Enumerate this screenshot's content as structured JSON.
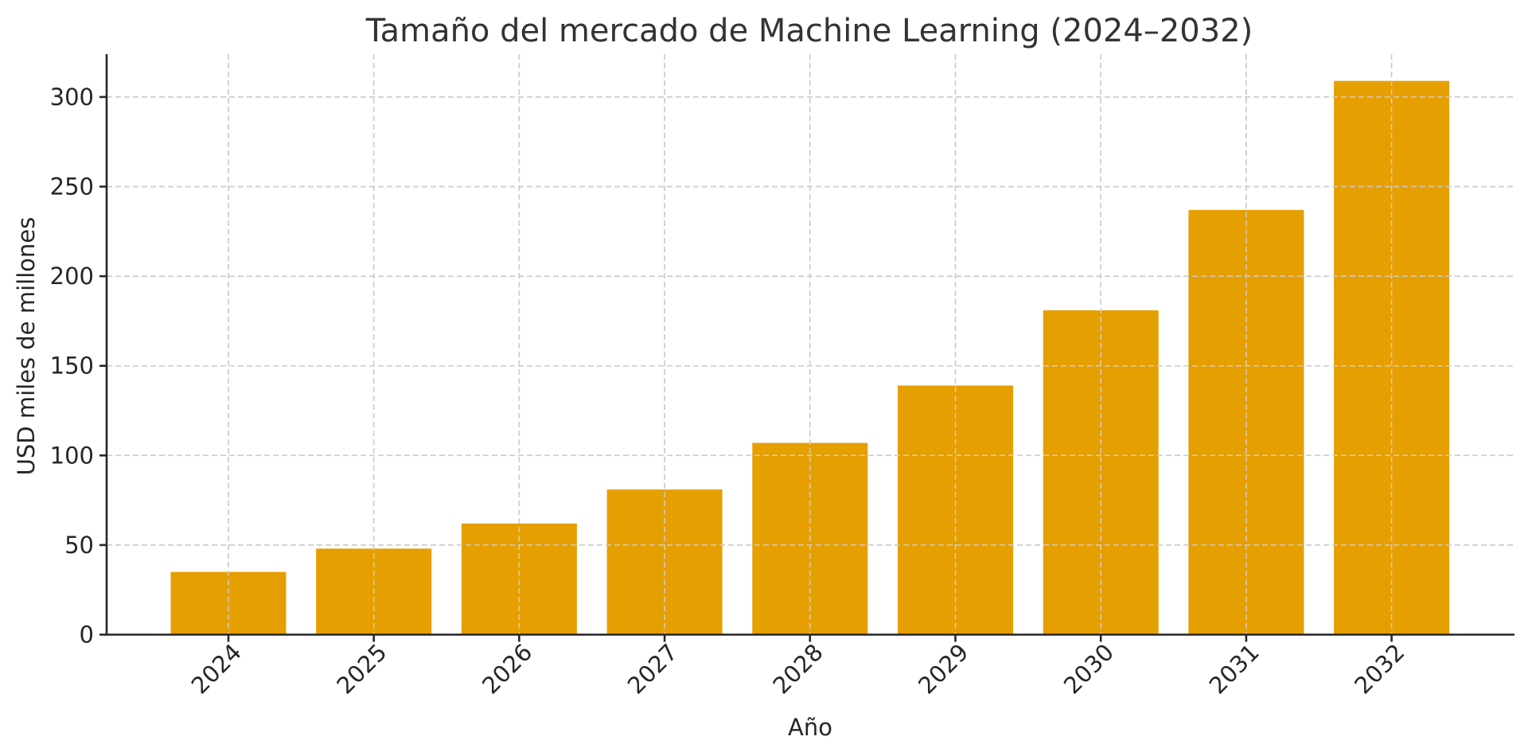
{
  "chart_data": {
    "type": "bar",
    "title": "Tamaño del mercado de Machine Learning (2024–2032)",
    "xlabel": "Año",
    "ylabel": "USD miles de millones",
    "categories": [
      "2024",
      "2025",
      "2026",
      "2027",
      "2028",
      "2029",
      "2030",
      "2031",
      "2032"
    ],
    "values": [
      35,
      48,
      62,
      81,
      107,
      139,
      181,
      237,
      309
    ],
    "ylim": [
      0,
      325
    ],
    "yticks": [
      0,
      50,
      100,
      150,
      200,
      250,
      300
    ],
    "grid": true,
    "legend": null,
    "bar_color": "#E69F00",
    "xtick_rotation": 45
  }
}
